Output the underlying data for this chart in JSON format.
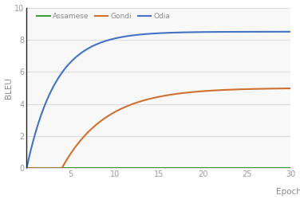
{
  "title": "",
  "xlabel": "Epochs",
  "ylabel": "BLEU",
  "xlim": [
    0,
    30
  ],
  "ylim": [
    0,
    10
  ],
  "xticks": [
    5,
    10,
    15,
    20,
    25,
    30
  ],
  "yticks": [
    0,
    2,
    4,
    6,
    8,
    10
  ],
  "legend_labels": [
    "Assamese",
    "Gondi",
    "Odia"
  ],
  "line_colors": [
    "#3a9e3a",
    "#d07030",
    "#4472c4"
  ],
  "background_color": "#ffffff",
  "plot_bg_color": "#f8f8f8"
}
